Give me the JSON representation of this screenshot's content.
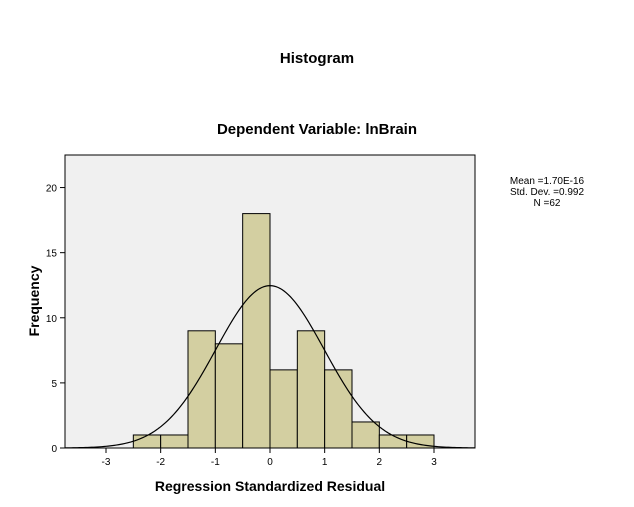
{
  "chart_data": {
    "type": "bar",
    "title": "Histogram",
    "subtitle": "Dependent Variable: lnBrain",
    "xlabel": "Regression Standardized Residual",
    "ylabel": "Frequency",
    "xlim": [
      -3.75,
      3.75
    ],
    "ylim": [
      0,
      22.5
    ],
    "x_ticks": [
      "-3",
      "-2",
      "-1",
      "0",
      "1",
      "2",
      "3"
    ],
    "y_ticks": [
      "0",
      "5",
      "10",
      "15",
      "20"
    ],
    "bin_width": 0.5,
    "bins": [
      {
        "start": -2.5,
        "end": -2.0,
        "count": 1
      },
      {
        "start": -2.0,
        "end": -1.5,
        "count": 1
      },
      {
        "start": -1.5,
        "end": -1.0,
        "count": 9
      },
      {
        "start": -1.0,
        "end": -0.5,
        "count": 8
      },
      {
        "start": -0.5,
        "end": 0.0,
        "count": 18
      },
      {
        "start": 0.0,
        "end": 0.5,
        "count": 6
      },
      {
        "start": 0.5,
        "end": 1.0,
        "count": 9
      },
      {
        "start": 1.0,
        "end": 1.5,
        "count": 6
      },
      {
        "start": 1.5,
        "end": 2.0,
        "count": 2
      },
      {
        "start": 2.0,
        "end": 2.5,
        "count": 1
      },
      {
        "start": 2.5,
        "end": 3.0,
        "count": 1
      }
    ],
    "normal_curve": {
      "mean": 1.7e-16,
      "std_dev": 0.992,
      "n": 62
    },
    "stats": {
      "mean_label": "Mean =1.70E-16",
      "std_label": "Std. Dev. =0.992",
      "n_label": "N =62"
    },
    "grid": false,
    "colors": {
      "bar_fill": "#d3cfa1",
      "bar_stroke": "#000000",
      "plot_background": "#f0f0f0",
      "curve": "#000000"
    }
  }
}
